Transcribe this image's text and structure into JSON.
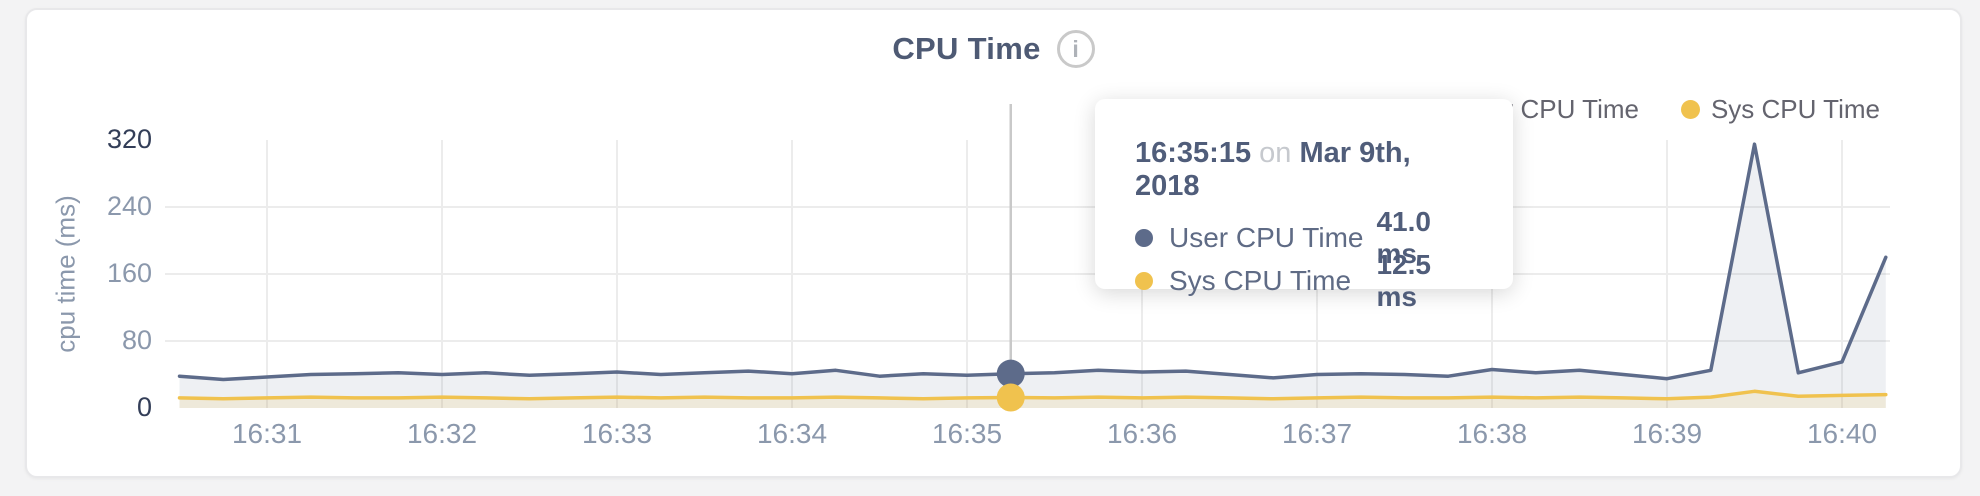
{
  "page": {
    "background": "#f3f3f4"
  },
  "header": {
    "title": "CPU Time",
    "info_icon": "i"
  },
  "legend": {
    "items": [
      {
        "label": "User CPU Time",
        "color": "#5d6b8a"
      },
      {
        "label": "Sys CPU Time",
        "color": "#f0c24e"
      }
    ]
  },
  "tooltip": {
    "time": "16:35:15",
    "connector": "on",
    "date": "Mar 9th, 2018",
    "rows": [
      {
        "label": "User CPU Time",
        "value": "41.0 ms",
        "color": "#5d6b8a"
      },
      {
        "label": "Sys CPU Time",
        "value": "12.5 ms",
        "color": "#f0c24e"
      }
    ]
  },
  "chart_data": {
    "type": "area",
    "title": "CPU Time",
    "ylabel": "cpu time (ms)",
    "ylim": [
      0,
      320
    ],
    "y_ticks": [
      320,
      240,
      160,
      80,
      0
    ],
    "x_ticks": [
      "16:31",
      "16:32",
      "16:33",
      "16:34",
      "16:35",
      "16:36",
      "16:37",
      "16:38",
      "16:39",
      "16:40"
    ],
    "grid": true,
    "legend_position": "top-right",
    "x": [
      "16:30:30",
      "16:30:45",
      "16:31:00",
      "16:31:15",
      "16:31:30",
      "16:31:45",
      "16:32:00",
      "16:32:15",
      "16:32:30",
      "16:32:45",
      "16:33:00",
      "16:33:15",
      "16:33:30",
      "16:33:45",
      "16:34:00",
      "16:34:15",
      "16:34:30",
      "16:34:45",
      "16:35:00",
      "16:35:15",
      "16:35:30",
      "16:35:45",
      "16:36:00",
      "16:36:15",
      "16:36:30",
      "16:36:45",
      "16:37:00",
      "16:37:15",
      "16:37:30",
      "16:37:45",
      "16:38:00",
      "16:38:15",
      "16:38:30",
      "16:38:45",
      "16:39:00",
      "16:39:15",
      "16:39:30",
      "16:39:45",
      "16:40:00",
      "16:40:15"
    ],
    "series": [
      {
        "name": "User CPU Time",
        "color": "#5d6b8a",
        "fill": "rgba(93,107,137,0.10)",
        "values": [
          38,
          34,
          37,
          40,
          41,
          42,
          40,
          42,
          39,
          41,
          43,
          40,
          42,
          44,
          41,
          45,
          38,
          41,
          39,
          41,
          42,
          45,
          43,
          44,
          40,
          36,
          40,
          41,
          40,
          38,
          46,
          42,
          45,
          40,
          35,
          45,
          315,
          42,
          55,
          180
        ]
      },
      {
        "name": "Sys CPU Time",
        "color": "#f0c24e",
        "fill": "rgba(240,194,78,0.15)",
        "values": [
          12,
          11,
          12,
          13,
          12,
          12,
          13,
          12,
          11,
          12,
          13,
          12,
          13,
          12,
          12,
          13,
          12,
          11,
          12,
          12.5,
          12,
          13,
          12,
          13,
          12,
          11,
          12,
          13,
          12,
          12,
          13,
          12,
          13,
          12,
          11,
          13,
          20,
          14,
          15,
          16
        ]
      }
    ],
    "hover_point": {
      "time": "16:35:15",
      "user_ms": 41.0,
      "sys_ms": 12.5
    }
  }
}
